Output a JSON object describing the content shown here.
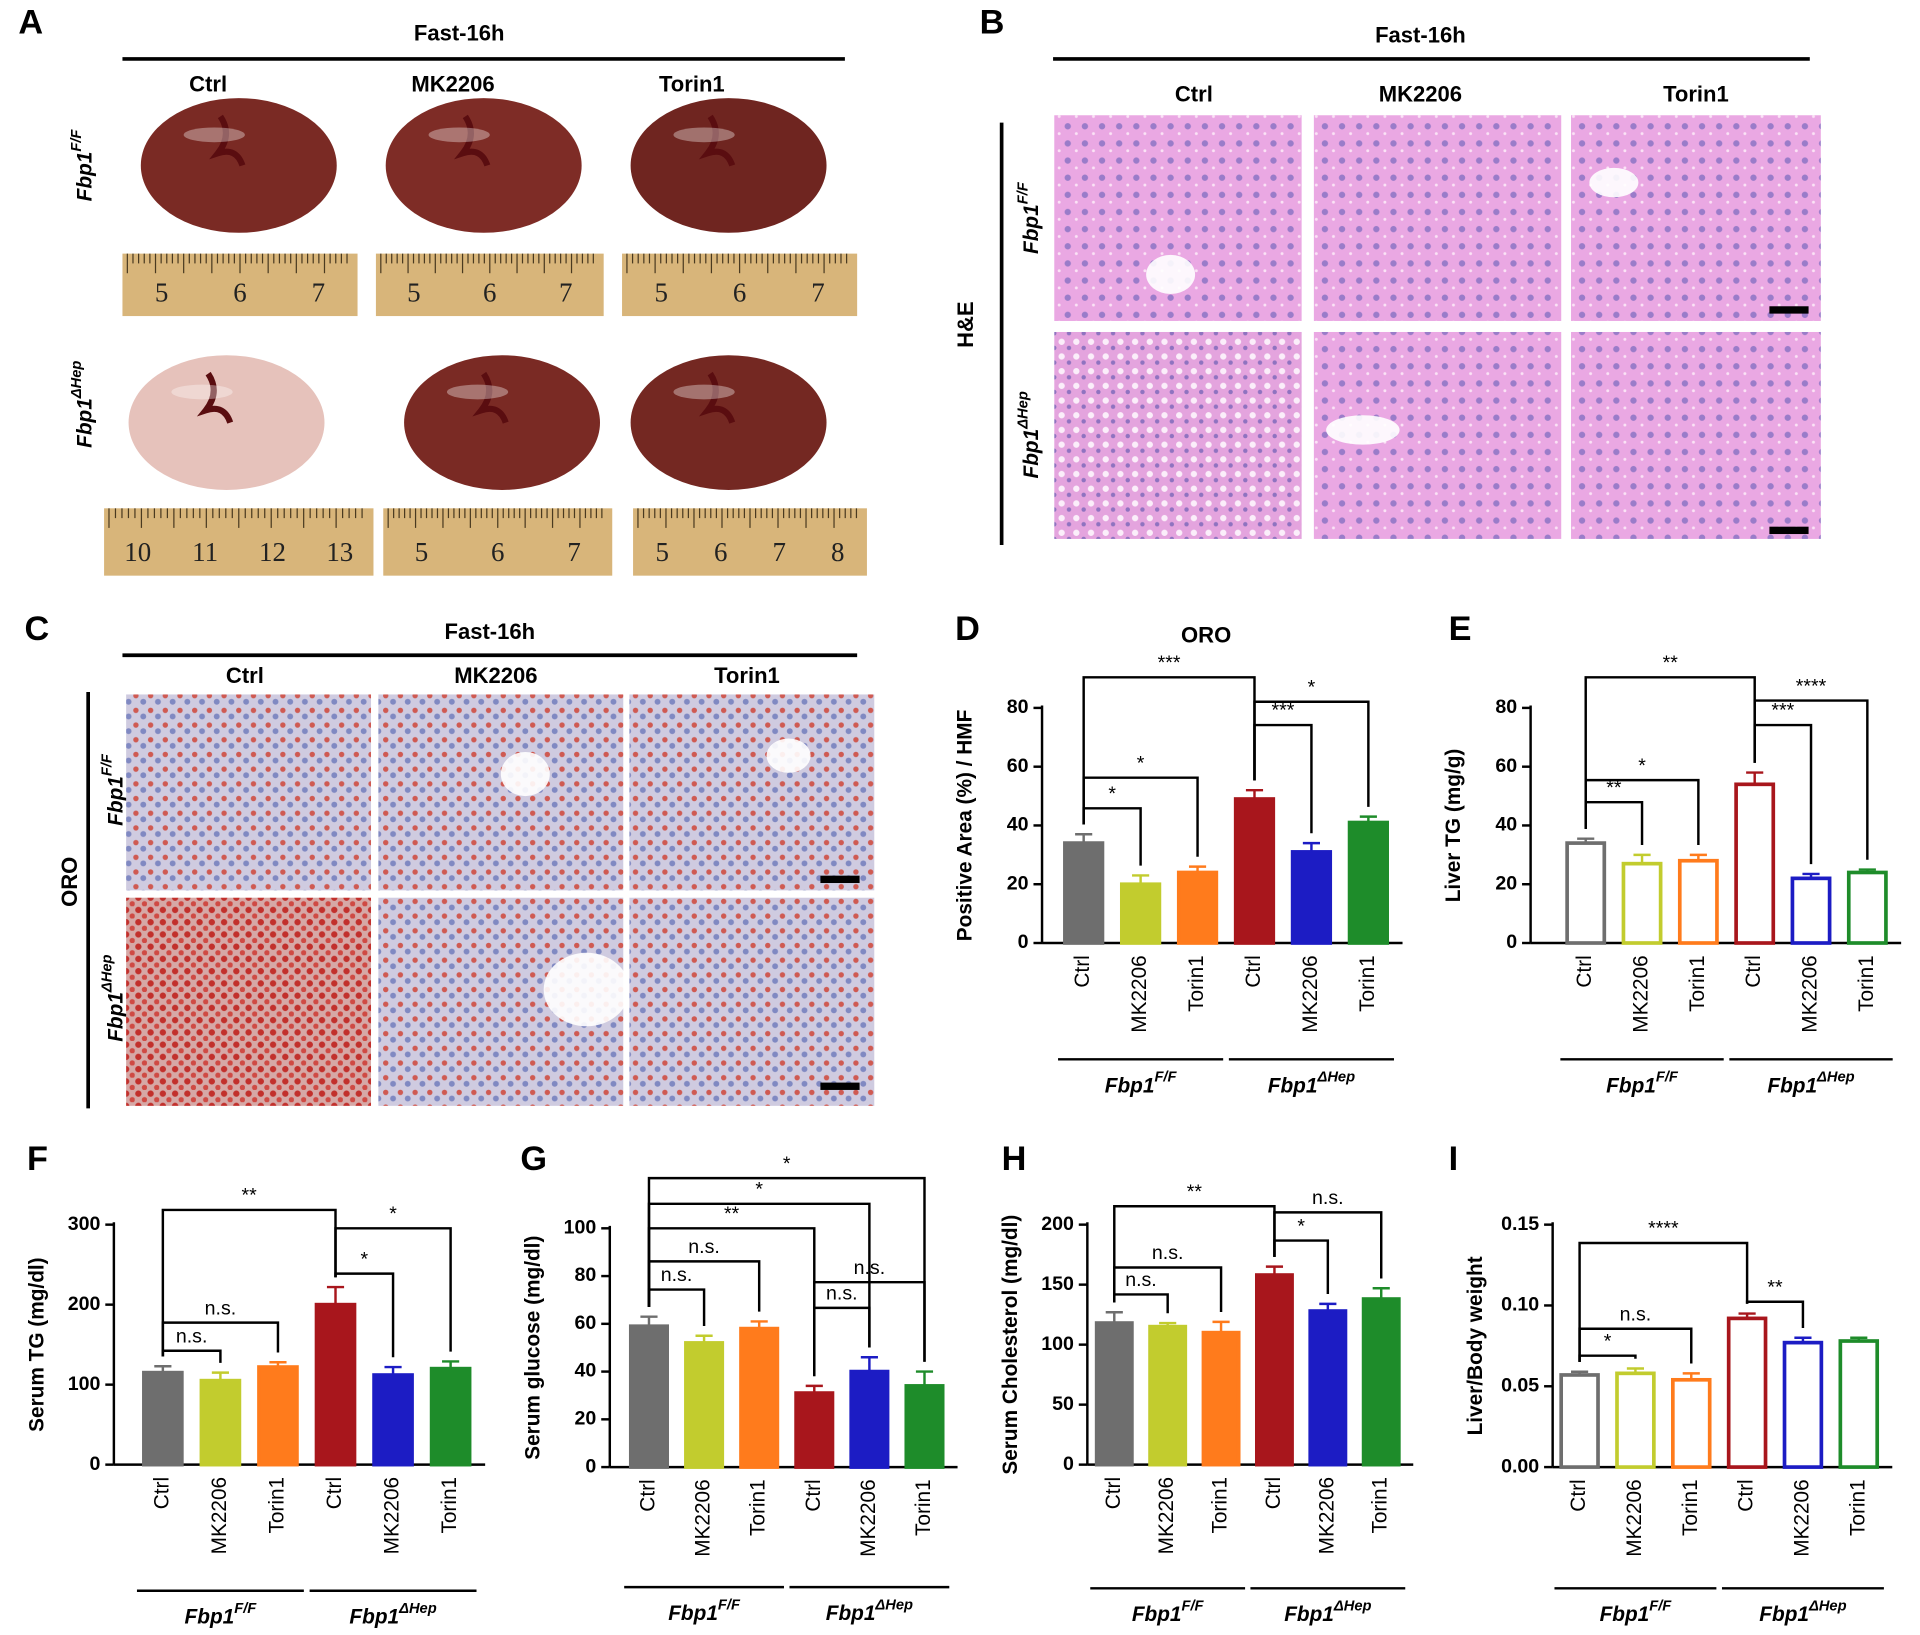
{
  "panels": {
    "A": {
      "letter": "A",
      "header": "Fast-16h",
      "columns": [
        "Ctrl",
        "MK2206",
        "Torin1"
      ],
      "rows": [
        {
          "gene": "Fbp1",
          "sup": "F/F"
        },
        {
          "gene": "Fbp1",
          "sup": "ΔHep"
        }
      ],
      "rulers": [
        [
          "5",
          "6",
          "7"
        ],
        [
          "5",
          "6",
          "7"
        ],
        [
          "5",
          "6",
          "7"
        ],
        [
          "10",
          "11",
          "12",
          "13"
        ],
        [
          "5",
          "6",
          "7"
        ],
        [
          "5",
          "6",
          "7",
          "8"
        ]
      ]
    },
    "B": {
      "letter": "B",
      "header": "Fast-16h",
      "columns": [
        "Ctrl",
        "MK2206",
        "Torin1"
      ],
      "stain": "H&E",
      "rows": [
        {
          "gene": "Fbp1",
          "sup": "F/F"
        },
        {
          "gene": "Fbp1",
          "sup": "ΔHep"
        }
      ]
    },
    "C": {
      "letter": "C",
      "header": "Fast-16h",
      "columns": [
        "Ctrl",
        "MK2206",
        "Torin1"
      ],
      "stain": "ORO",
      "rows": [
        {
          "gene": "Fbp1",
          "sup": "F/F"
        },
        {
          "gene": "Fbp1",
          "sup": "ΔHep"
        }
      ]
    }
  },
  "chart_data": [
    {
      "type": "bar",
      "panel": "D",
      "title": "ORO",
      "ylabel": "Positive  Area (%) / HMF",
      "categories": [
        "Ctrl",
        "MK2206",
        "Torin1",
        "Ctrl",
        "MK2206",
        "Torin1"
      ],
      "values": [
        34,
        20,
        24,
        49,
        31,
        41
      ],
      "errors": [
        3,
        3,
        2,
        3,
        3,
        2
      ],
      "colors": [
        "#6e6e6e",
        "#c2cc2e",
        "#ff7b1c",
        "#a8161c",
        "#1c1cc4",
        "#1e8c2a"
      ],
      "filled": true,
      "ylim": [
        0,
        80
      ],
      "yticks": [
        0,
        20,
        40,
        60,
        80
      ],
      "groups": [
        {
          "gene": "Fbp1",
          "sup": "F/F"
        },
        {
          "gene": "Fbp1",
          "sup": "ΔHep"
        }
      ],
      "annotations": [
        "***",
        "*",
        "*",
        "***",
        "*"
      ]
    },
    {
      "type": "bar",
      "panel": "E",
      "ylabel": "Liver TG (mg/g)",
      "categories": [
        "Ctrl",
        "MK2206",
        "Torin1",
        "Ctrl",
        "MK2206",
        "Torin1"
      ],
      "values": [
        34,
        27,
        28,
        54,
        22,
        24
      ],
      "errors": [
        1.5,
        3,
        2,
        4,
        1.5,
        1
      ],
      "colors": [
        "#6e6e6e",
        "#c2cc2e",
        "#ff7b1c",
        "#a8161c",
        "#1c1cc4",
        "#1e8c2a"
      ],
      "filled": false,
      "ylim": [
        0,
        80
      ],
      "yticks": [
        0,
        20,
        40,
        60,
        80
      ],
      "groups": [
        {
          "gene": "Fbp1",
          "sup": "F/F"
        },
        {
          "gene": "Fbp1",
          "sup": "ΔHep"
        }
      ],
      "annotations": [
        "**",
        "**",
        "*",
        "***",
        "****"
      ]
    },
    {
      "type": "bar",
      "panel": "F",
      "ylabel": "Serum TG (mg/dl)",
      "categories": [
        "Ctrl",
        "MK2206",
        "Torin1",
        "Ctrl",
        "MK2206",
        "Torin1"
      ],
      "values": [
        115,
        105,
        122,
        200,
        112,
        120
      ],
      "errors": [
        8,
        10,
        6,
        22,
        10,
        9
      ],
      "colors": [
        "#6e6e6e",
        "#c2cc2e",
        "#ff7b1c",
        "#a8161c",
        "#1c1cc4",
        "#1e8c2a"
      ],
      "filled": true,
      "ylim": [
        0,
        300
      ],
      "yticks": [
        0,
        100,
        200,
        300
      ],
      "groups": [
        {
          "gene": "Fbp1",
          "sup": "F/F"
        },
        {
          "gene": "Fbp1",
          "sup": "ΔHep"
        }
      ],
      "annotations": [
        "**",
        "n.s.",
        "n.s.",
        "*",
        "*"
      ]
    },
    {
      "type": "bar",
      "panel": "G",
      "ylabel": "Serum glucose (mg/dl)",
      "categories": [
        "Ctrl",
        "MK2206",
        "Torin1",
        "Ctrl",
        "MK2206",
        "Torin1"
      ],
      "values": [
        59,
        52,
        58,
        31,
        40,
        34
      ],
      "errors": [
        4,
        3,
        3,
        3,
        6,
        6
      ],
      "colors": [
        "#6e6e6e",
        "#c2cc2e",
        "#ff7b1c",
        "#a8161c",
        "#1c1cc4",
        "#1e8c2a"
      ],
      "filled": true,
      "ylim": [
        0,
        100
      ],
      "yticks": [
        0,
        20,
        40,
        60,
        80,
        100
      ],
      "groups": [
        {
          "gene": "Fbp1",
          "sup": "F/F"
        },
        {
          "gene": "Fbp1",
          "sup": "ΔHep"
        }
      ],
      "annotations": [
        "*",
        "*",
        "**",
        "n.s.",
        "n.s.",
        "n.s.",
        "n.s."
      ]
    },
    {
      "type": "bar",
      "panel": "H",
      "ylabel": "Serum Cholesterol (mg/dl)",
      "categories": [
        "Ctrl",
        "MK2206",
        "Torin1",
        "Ctrl",
        "MK2206",
        "Torin1"
      ],
      "values": [
        118,
        115,
        110,
        158,
        128,
        138
      ],
      "errors": [
        9,
        3,
        9,
        7,
        6,
        9
      ],
      "colors": [
        "#6e6e6e",
        "#c2cc2e",
        "#ff7b1c",
        "#a8161c",
        "#1c1cc4",
        "#1e8c2a"
      ],
      "filled": true,
      "ylim": [
        0,
        200
      ],
      "yticks": [
        0,
        50,
        100,
        150,
        200
      ],
      "groups": [
        {
          "gene": "Fbp1",
          "sup": "F/F"
        },
        {
          "gene": "Fbp1",
          "sup": "ΔHep"
        }
      ],
      "annotations": [
        "**",
        "n.s.",
        "n.s.",
        "*",
        "n.s."
      ]
    },
    {
      "type": "bar",
      "panel": "I",
      "ylabel": "Liver/Body weight",
      "categories": [
        "Ctrl",
        "MK2206",
        "Torin1",
        "Ctrl",
        "MK2206",
        "Torin1"
      ],
      "values": [
        0.057,
        0.058,
        0.054,
        0.092,
        0.077,
        0.078
      ],
      "errors": [
        0.002,
        0.003,
        0.004,
        0.003,
        0.003,
        0.002
      ],
      "colors": [
        "#6e6e6e",
        "#c2cc2e",
        "#ff7b1c",
        "#a8161c",
        "#1c1cc4",
        "#1e8c2a"
      ],
      "filled": false,
      "ylim": [
        0,
        0.15
      ],
      "yticks": [
        {
          "value": 0,
          "label": "0.00"
        },
        {
          "value": 0.05,
          "label": "0.05"
        },
        {
          "value": 0.1,
          "label": "0.10"
        },
        {
          "value": 0.15,
          "label": "0.15"
        }
      ],
      "groups": [
        {
          "gene": "Fbp1",
          "sup": "F/F"
        },
        {
          "gene": "Fbp1",
          "sup": "ΔHep"
        }
      ],
      "annotations": [
        "****",
        "n.s.",
        "*",
        "**"
      ]
    }
  ]
}
